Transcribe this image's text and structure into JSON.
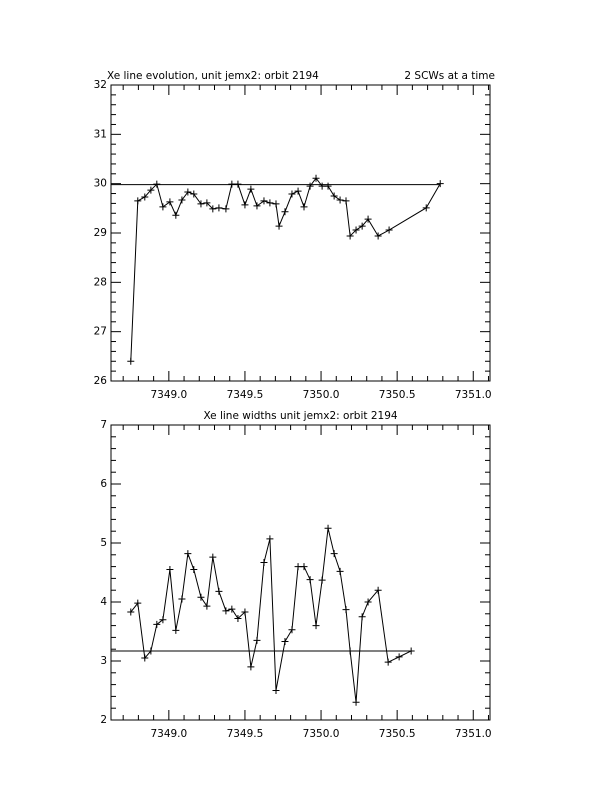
{
  "chart_data": [
    {
      "type": "line",
      "title": "Xe line evolution, unit jemx2: orbit 2194",
      "subtitle": "2 SCWs at a time",
      "x": [
        7348.75,
        7348.796,
        7348.842,
        7348.882,
        7348.921,
        7348.961,
        7349.007,
        7349.046,
        7349.086,
        7349.125,
        7349.164,
        7349.211,
        7349.25,
        7349.289,
        7349.329,
        7349.375,
        7349.414,
        7349.454,
        7349.5,
        7349.539,
        7349.579,
        7349.625,
        7349.664,
        7349.704,
        7349.724,
        7349.763,
        7349.809,
        7349.849,
        7349.888,
        7349.928,
        7349.967,
        7350.007,
        7350.046,
        7350.086,
        7350.125,
        7350.164,
        7350.191,
        7350.23,
        7350.27,
        7350.309,
        7350.375,
        7350.447,
        7350.691,
        7350.783
      ],
      "values": [
        26.4,
        29.65,
        29.73,
        29.87,
        29.99,
        29.53,
        29.63,
        29.36,
        29.67,
        29.83,
        29.79,
        29.59,
        29.61,
        29.49,
        29.51,
        29.49,
        29.99,
        29.99,
        29.57,
        29.89,
        29.55,
        29.65,
        29.61,
        29.59,
        29.14,
        29.43,
        29.79,
        29.85,
        29.53,
        29.95,
        30.11,
        29.95,
        29.95,
        29.75,
        29.67,
        29.65,
        28.94,
        29.06,
        29.14,
        29.28,
        28.94,
        29.06,
        29.51,
        30.0
      ],
      "color": "#000000",
      "reference_line": 29.98,
      "xlim": [
        7348.62,
        7351.11
      ],
      "xticks": [
        {
          "value": 7349.0,
          "label": "7349.0"
        },
        {
          "value": 7349.5,
          "label": "7349.5"
        },
        {
          "value": 7350.0,
          "label": "7350.0"
        },
        {
          "value": 7350.5,
          "label": "7350.5"
        },
        {
          "value": 7351.0,
          "label": "7351.0"
        }
      ],
      "ylim": [
        26,
        32
      ],
      "yticks": [
        26,
        27,
        28,
        29,
        30,
        31,
        32
      ]
    },
    {
      "type": "line",
      "title": "Xe line widths unit jemx2: orbit 2194",
      "x": [
        7348.75,
        7348.796,
        7348.842,
        7348.882,
        7348.921,
        7348.961,
        7349.007,
        7349.046,
        7349.086,
        7349.125,
        7349.164,
        7349.211,
        7349.25,
        7349.289,
        7349.329,
        7349.375,
        7349.414,
        7349.454,
        7349.5,
        7349.539,
        7349.579,
        7349.625,
        7349.664,
        7349.704,
        7349.763,
        7349.809,
        7349.849,
        7349.888,
        7349.928,
        7349.967,
        7350.007,
        7350.046,
        7350.086,
        7350.125,
        7350.164,
        7350.191,
        7350.23,
        7350.27,
        7350.309,
        7350.375,
        7350.441,
        7350.513,
        7350.592
      ],
      "values": [
        3.83,
        3.98,
        3.05,
        3.17,
        3.62,
        3.7,
        4.55,
        3.52,
        4.05,
        4.82,
        4.55,
        4.08,
        3.93,
        4.76,
        4.18,
        3.85,
        3.88,
        3.72,
        3.83,
        2.9,
        3.35,
        4.67,
        5.07,
        2.5,
        3.33,
        3.53,
        4.6,
        4.6,
        4.38,
        3.6,
        4.37,
        5.25,
        4.82,
        4.52,
        3.87,
        3.17,
        2.3,
        3.75,
        4.0,
        4.2,
        2.98,
        3.07,
        3.17
      ],
      "color": "#000000",
      "reference_line": 3.17,
      "xlim": [
        7348.62,
        7351.11
      ],
      "xticks": [
        {
          "value": 7349.0,
          "label": "7349.0"
        },
        {
          "value": 7349.5,
          "label": "7349.5"
        },
        {
          "value": 7350.0,
          "label": "7350.0"
        },
        {
          "value": 7350.5,
          "label": "7350.5"
        },
        {
          "value": 7351.0,
          "label": "7351.0"
        }
      ],
      "ylim": [
        2,
        7
      ],
      "yticks": [
        2,
        3,
        4,
        5,
        6,
        7
      ]
    }
  ]
}
